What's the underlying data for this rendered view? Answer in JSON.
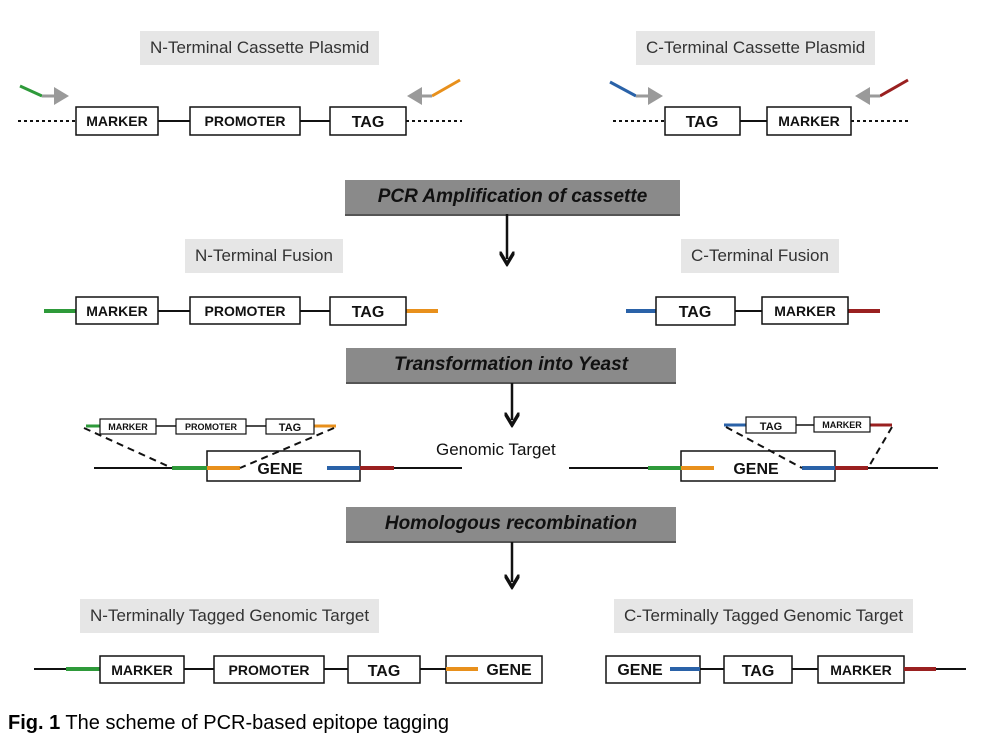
{
  "labels": {
    "n_cassette": "N-Terminal Cassette Plasmid",
    "c_cassette": "C-Terminal Cassette Plasmid",
    "n_fusion": "N-Terminal Fusion",
    "c_fusion": "C-Terminal Fusion",
    "genomic_target": "Genomic Target",
    "n_tagged": "N-Terminally Tagged Genomic Target",
    "c_tagged": "C-Terminally Tagged Genomic Target"
  },
  "steps": {
    "pcr": "PCR Amplification of cassette",
    "transformation": "Transformation into Yeast",
    "recombination": "Homologous recombination"
  },
  "boxes": {
    "marker": "MARKER",
    "promoter": "PROMOTER",
    "tag": "TAG",
    "gene": "GENE"
  },
  "caption": {
    "prefix": "Fig. 1",
    "text": " The scheme of PCR-based epitope tagging"
  },
  "colors": {
    "green": "#2e9a3a",
    "orange": "#e8901c",
    "blue": "#2a62a8",
    "red": "#9a2020",
    "gray_arrow": "#9a9a9a",
    "step_bg": "#8a8a8a",
    "label_bg": "#e6e6e6"
  }
}
